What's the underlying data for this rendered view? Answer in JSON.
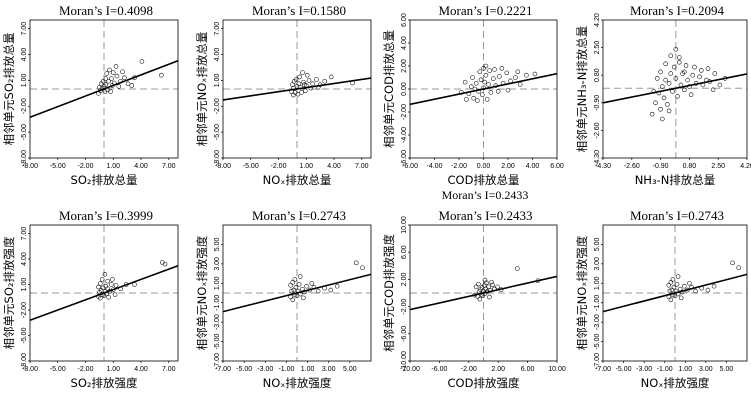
{
  "chart_data": [
    {
      "type": "scatter",
      "title": "Moran’s I=0.4098",
      "xlabel": "SO₂排放总量",
      "ylabel": "相邻单元SO₂排放总量",
      "xlim": [
        -8,
        8
      ],
      "ylim": [
        -8,
        8
      ],
      "xticks": [
        -8,
        -5,
        -2,
        1,
        4,
        7
      ],
      "yticks": [
        -8,
        -5,
        -2,
        1,
        4,
        7
      ],
      "tick_labels_x": [
        "-8.00",
        "-5.00",
        "-2.00",
        "1.00",
        "4.00",
        "7.00"
      ],
      "tick_labels_y": [
        "-8.00",
        "-5.00",
        "-2.00",
        "1.00",
        "4.00",
        "7.00"
      ],
      "fit": {
        "slope": 0.4098,
        "intercept": 0
      },
      "points": [
        [
          -0.6,
          -0.5
        ],
        [
          -0.4,
          -0.2
        ],
        [
          -0.2,
          0.1
        ],
        [
          0.0,
          0.3
        ],
        [
          0.2,
          0.5
        ],
        [
          0.5,
          0.9
        ],
        [
          0.8,
          1.2
        ],
        [
          1.1,
          0.7
        ],
        [
          1.4,
          1.5
        ],
        [
          1.8,
          0.9
        ],
        [
          2.2,
          1.3
        ],
        [
          2.6,
          0.6
        ],
        [
          0.3,
          1.8
        ],
        [
          0.6,
          2.2
        ],
        [
          1.0,
          1.9
        ],
        [
          3.3,
          1.3
        ],
        [
          4.1,
          3.2
        ],
        [
          6.2,
          1.6
        ],
        [
          -0.3,
          0.6
        ],
        [
          0.1,
          -0.3
        ],
        [
          -0.5,
          0.2
        ],
        [
          0.4,
          -0.1
        ],
        [
          0.9,
          0.4
        ],
        [
          1.6,
          0.3
        ],
        [
          0.7,
          -0.3
        ],
        [
          -0.1,
          0.9
        ],
        [
          2.0,
          2.0
        ],
        [
          1.3,
          2.6
        ],
        [
          0.2,
          1.2
        ],
        [
          3.0,
          0.4
        ]
      ]
    },
    {
      "type": "scatter",
      "title": "Moran’s I=0.1580",
      "xlabel": "NOₓ排放总量",
      "ylabel": "相邻单元NOₓ排放总量",
      "xlim": [
        -8,
        8
      ],
      "ylim": [
        -8,
        8
      ],
      "xticks": [
        -8,
        -5,
        -2,
        1,
        4,
        7
      ],
      "yticks": [
        -8,
        -5,
        -2,
        1,
        4,
        7
      ],
      "tick_labels_x": [
        "-8.00",
        "-5.00",
        "-2.00",
        "1.00",
        "4.00",
        "7.00"
      ],
      "tick_labels_y": [
        "-8.00",
        "-5.00",
        "-2.00",
        "1.00",
        "4.00",
        "7.00"
      ],
      "fit": {
        "slope": 0.158,
        "intercept": 0
      },
      "points": [
        [
          -0.6,
          -0.3
        ],
        [
          -0.4,
          0.1
        ],
        [
          -0.2,
          -0.4
        ],
        [
          0.0,
          0.3
        ],
        [
          0.2,
          0.6
        ],
        [
          0.4,
          0.2
        ],
        [
          0.7,
          0.8
        ],
        [
          1.0,
          0.4
        ],
        [
          1.3,
          1.0
        ],
        [
          1.7,
          0.6
        ],
        [
          2.1,
          1.1
        ],
        [
          2.5,
          0.5
        ],
        [
          0.3,
          1.4
        ],
        [
          0.6,
          1.9
        ],
        [
          -0.3,
          0.9
        ],
        [
          0.9,
          -0.2
        ],
        [
          3.0,
          0.9
        ],
        [
          3.7,
          1.4
        ],
        [
          6.0,
          0.7
        ],
        [
          -0.5,
          0.5
        ],
        [
          0.1,
          -0.6
        ],
        [
          1.5,
          0.1
        ],
        [
          0.5,
          -0.4
        ],
        [
          -0.1,
          1.1
        ],
        [
          2.3,
          0.2
        ],
        [
          1.1,
          1.6
        ],
        [
          0.8,
          0.5
        ],
        [
          -0.4,
          -0.7
        ]
      ]
    },
    {
      "type": "scatter",
      "title": "Moran’s I=0.2221",
      "xlabel": "COD排放总量",
      "ylabel": "相邻单元COD排放总量",
      "xlim": [
        -6,
        6
      ],
      "ylim": [
        -6,
        6
      ],
      "xticks": [
        -6,
        -4,
        -2,
        0,
        2,
        4,
        6
      ],
      "yticks": [
        -6,
        -4,
        -2,
        0,
        2,
        4,
        6
      ],
      "tick_labels_x": [
        "-6.00",
        "-4.00",
        "-2.00",
        "0.00",
        "2.00",
        "4.00",
        "6.00"
      ],
      "tick_labels_y": [
        "-6.00",
        "-4.00",
        "-2.00",
        "0.00",
        "2.00",
        "4.00",
        "6.00"
      ],
      "fit": {
        "slope": 0.2221,
        "intercept": 0
      },
      "points": [
        [
          -1.2,
          -0.4
        ],
        [
          -1.0,
          0.2
        ],
        [
          -0.8,
          -0.8
        ],
        [
          -0.6,
          0.5
        ],
        [
          -0.4,
          -0.2
        ],
        [
          -0.2,
          0.8
        ],
        [
          0.0,
          0.1
        ],
        [
          0.2,
          1.2
        ],
        [
          0.4,
          0.4
        ],
        [
          0.6,
          -0.3
        ],
        [
          0.8,
          0.9
        ],
        [
          1.0,
          0.3
        ],
        [
          1.3,
          1.1
        ],
        [
          1.6,
          0.5
        ],
        [
          1.9,
          1.4
        ],
        [
          2.2,
          0.7
        ],
        [
          2.6,
          1.0
        ],
        [
          3.0,
          0.4
        ],
        [
          3.5,
          1.2
        ],
        [
          0.0,
          1.8
        ],
        [
          0.2,
          2.0
        ],
        [
          -0.3,
          1.5
        ],
        [
          0.5,
          1.6
        ],
        [
          -1.5,
          0.6
        ],
        [
          -1.8,
          -0.3
        ],
        [
          -0.9,
          1.0
        ],
        [
          0.3,
          -0.9
        ],
        [
          1.2,
          -0.2
        ],
        [
          -0.5,
          -1.0
        ],
        [
          2.0,
          -0.1
        ],
        [
          0.9,
          1.7
        ],
        [
          -1.4,
          -0.9
        ],
        [
          0.1,
          0.6
        ],
        [
          -0.7,
          0.0
        ],
        [
          1.5,
          1.8
        ],
        [
          4.2,
          1.3
        ],
        [
          2.8,
          1.5
        ],
        [
          -0.1,
          -0.5
        ]
      ]
    },
    {
      "type": "scatter",
      "title": "Moran’s I=0.2094",
      "xlabel": "NH₃-N排放总量",
      "ylabel": "相邻单元NH₃-N排放总量",
      "xlim": [
        -4.3,
        4.2
      ],
      "ylim": [
        -4.3,
        4.2
      ],
      "xticks": [
        -4.3,
        -2.6,
        -0.9,
        0.8,
        2.5,
        4.2
      ],
      "yticks": [
        -4.3,
        -2.6,
        -0.9,
        0.8,
        2.5,
        4.2
      ],
      "tick_labels_x": [
        "-4.30",
        "-2.60",
        "-0.90",
        "0.80",
        "2.50",
        "4.20"
      ],
      "tick_labels_y": [
        "-4.30",
        "-2.60",
        "-0.90",
        "0.80",
        "2.50",
        "4.20"
      ],
      "fit": {
        "slope": 0.2094,
        "intercept": 0
      },
      "points": [
        [
          -1.2,
          -0.9
        ],
        [
          -1.0,
          -0.3
        ],
        [
          -0.9,
          -1.3
        ],
        [
          -0.8,
          0.1
        ],
        [
          -0.7,
          -0.6
        ],
        [
          -0.6,
          0.5
        ],
        [
          -0.5,
          -1.0
        ],
        [
          -0.4,
          0.3
        ],
        [
          -0.3,
          0.9
        ],
        [
          -0.2,
          -0.2
        ],
        [
          -0.1,
          1.3
        ],
        [
          0.0,
          0.6
        ],
        [
          0.1,
          -0.5
        ],
        [
          0.2,
          1.6
        ],
        [
          0.3,
          0.2
        ],
        [
          0.4,
          0.9
        ],
        [
          0.5,
          -0.1
        ],
        [
          0.6,
          1.4
        ],
        [
          0.7,
          0.5
        ],
        [
          0.8,
          0.1
        ],
        [
          1.0,
          0.8
        ],
        [
          1.2,
          0.3
        ],
        [
          1.4,
          0.7
        ],
        [
          1.6,
          0.2
        ],
        [
          1.8,
          0.5
        ],
        [
          2.0,
          0.4
        ],
        [
          2.3,
          0.9
        ],
        [
          2.6,
          0.2
        ],
        [
          2.9,
          0.6
        ],
        [
          -1.4,
          -1.6
        ],
        [
          -1.1,
          0.6
        ],
        [
          -0.9,
          1.0
        ],
        [
          -0.6,
          1.5
        ],
        [
          -0.3,
          2.0
        ],
        [
          0.0,
          2.4
        ],
        [
          0.2,
          1.9
        ],
        [
          -1.3,
          -0.2
        ],
        [
          -0.8,
          -1.9
        ],
        [
          0.5,
          1.0
        ],
        [
          1.1,
          1.3
        ],
        [
          1.5,
          1.1
        ],
        [
          -0.4,
          -1.4
        ],
        [
          0.9,
          -0.4
        ],
        [
          1.9,
          1.2
        ],
        [
          2.2,
          -0.1
        ]
      ]
    },
    {
      "type": "scatter",
      "title": "Moran’s I=0.3999",
      "xlabel": "SO₂排放强度",
      "ylabel": "相邻单元SO₂排放强度",
      "xlim": [
        -8,
        8
      ],
      "ylim": [
        -8,
        8
      ],
      "xticks": [
        -8,
        -5,
        -2,
        1,
        4,
        7
      ],
      "yticks": [
        -8,
        -5,
        -2,
        1,
        4,
        7
      ],
      "tick_labels_x": [
        "-8.00",
        "-5.00",
        "-2.00",
        "1.00",
        "4.00",
        "7.00"
      ],
      "tick_labels_y": [
        "-8.00",
        "-5.00",
        "-2.00",
        "1.00",
        "4.00",
        "7.00"
      ],
      "fit": {
        "slope": 0.3999,
        "intercept": 0
      },
      "points": [
        [
          -0.6,
          -0.4
        ],
        [
          -0.5,
          0.1
        ],
        [
          -0.4,
          -0.6
        ],
        [
          -0.3,
          0.3
        ],
        [
          -0.2,
          -0.2
        ],
        [
          -0.1,
          0.6
        ],
        [
          0.0,
          -0.3
        ],
        [
          0.1,
          0.2
        ],
        [
          0.2,
          0.8
        ],
        [
          0.3,
          -0.1
        ],
        [
          0.4,
          0.5
        ],
        [
          0.6,
          0.2
        ],
        [
          0.8,
          1.0
        ],
        [
          1.0,
          0.4
        ],
        [
          1.3,
          0.9
        ],
        [
          1.8,
          0.5
        ],
        [
          2.4,
          1.0
        ],
        [
          -0.2,
          1.6
        ],
        [
          0.1,
          2.2
        ],
        [
          0.4,
          1.4
        ],
        [
          6.3,
          3.6
        ],
        [
          6.6,
          3.4
        ],
        [
          3.3,
          1.0
        ],
        [
          -0.6,
          0.7
        ],
        [
          0.5,
          -0.5
        ],
        [
          1.2,
          -0.2
        ],
        [
          -0.4,
          1.1
        ],
        [
          0.9,
          1.6
        ]
      ]
    },
    {
      "type": "scatter",
      "title": "Moran’s I=0.2743",
      "xlabel": "NOₓ排放强度",
      "ylabel": "相邻单元NOₓ排放强度",
      "xlim": [
        -7,
        7
      ],
      "ylim": [
        -7,
        7
      ],
      "xticks": [
        -7,
        -5,
        -3,
        -1,
        1,
        3,
        5
      ],
      "yticks": [
        -7,
        -5,
        -3,
        -1,
        1,
        3,
        5
      ],
      "tick_labels_x": [
        "-7.00",
        "-5.00",
        "-3.00",
        "-1.00",
        "1.00",
        "3.00",
        "5.00"
      ],
      "tick_labels_y": [
        "-7.00",
        "-5.00",
        "-3.00",
        "-1.00",
        "1.00",
        "3.00",
        "5.00"
      ],
      "fit": {
        "slope": 0.2743,
        "intercept": 0
      },
      "points": [
        [
          -0.6,
          -0.4
        ],
        [
          -0.5,
          0.2
        ],
        [
          -0.4,
          -0.7
        ],
        [
          -0.3,
          0.3
        ],
        [
          -0.2,
          -0.2
        ],
        [
          -0.1,
          0.6
        ],
        [
          0.0,
          -0.3
        ],
        [
          0.1,
          0.2
        ],
        [
          0.2,
          0.9
        ],
        [
          0.3,
          -0.1
        ],
        [
          0.5,
          0.4
        ],
        [
          0.7,
          0.1
        ],
        [
          0.9,
          0.7
        ],
        [
          1.2,
          0.3
        ],
        [
          1.6,
          0.6
        ],
        [
          2.0,
          0.2
        ],
        [
          2.6,
          0.5
        ],
        [
          3.2,
          0.3
        ],
        [
          3.8,
          0.7
        ],
        [
          -0.2,
          1.4
        ],
        [
          0.3,
          1.7
        ],
        [
          5.6,
          3.1
        ],
        [
          6.2,
          2.6
        ],
        [
          0.6,
          -0.5
        ],
        [
          -0.6,
          0.8
        ],
        [
          1.4,
          1.0
        ],
        [
          -0.4,
          1.1
        ]
      ]
    },
    {
      "type": "scatter",
      "title": "Moran’s I=0.2433",
      "xlabel": "COD排放强度",
      "ylabel": "相邻单元COD排放强度",
      "xlim": [
        -10,
        10
      ],
      "ylim": [
        -10,
        10
      ],
      "xticks": [
        -10,
        -6,
        -2,
        2,
        6,
        10
      ],
      "yticks": [
        -10,
        -6,
        -2,
        2,
        6,
        10
      ],
      "tick_labels_x": [
        "-10.00",
        "-6.00",
        "-2.00",
        "2.00",
        "6.00",
        "10.00"
      ],
      "tick_labels_y": [
        "-10.00",
        "-6.00",
        "-2.00",
        "2.00",
        "6.00",
        "10.00"
      ],
      "fit": {
        "slope": 0.2433,
        "intercept": 0
      },
      "points": [
        [
          -0.8,
          -0.5
        ],
        [
          -0.6,
          0.2
        ],
        [
          -0.5,
          -0.9
        ],
        [
          -0.4,
          0.5
        ],
        [
          -0.3,
          -0.2
        ],
        [
          -0.2,
          0.8
        ],
        [
          -0.1,
          -0.4
        ],
        [
          0.0,
          0.3
        ],
        [
          0.1,
          1.1
        ],
        [
          0.2,
          -0.1
        ],
        [
          0.3,
          0.6
        ],
        [
          0.5,
          0.2
        ],
        [
          0.7,
          0.9
        ],
        [
          0.9,
          0.4
        ],
        [
          1.2,
          1.2
        ],
        [
          1.5,
          0.6
        ],
        [
          1.9,
          0.9
        ],
        [
          2.4,
          0.5
        ],
        [
          -1.0,
          0.9
        ],
        [
          -0.7,
          1.3
        ],
        [
          0.4,
          1.5
        ],
        [
          4.6,
          3.6
        ],
        [
          7.4,
          1.8
        ],
        [
          0.8,
          -0.6
        ],
        [
          -1.2,
          -0.3
        ],
        [
          1.1,
          1.6
        ],
        [
          0.2,
          1.9
        ]
      ]
    },
    {
      "type": "scatter",
      "title": "Moran’s I=0.2743",
      "xlabel": "NOₓ排放强度",
      "ylabel": "相邻单元NOₓ排放强度",
      "xlim": [
        -7,
        7
      ],
      "ylim": [
        -7,
        7
      ],
      "xticks": [
        -7,
        -5,
        -3,
        -1,
        1,
        3,
        5
      ],
      "yticks": [
        -7,
        -5,
        -3,
        -1,
        1,
        3,
        5
      ],
      "tick_labels_x": [
        "-7.00",
        "-5.00",
        "-3.00",
        "-1.00",
        "1.00",
        "3.00",
        "5.00"
      ],
      "tick_labels_y": [
        "-7.00",
        "-5.00",
        "-3.00",
        "-1.00",
        "1.00",
        "3.00",
        "5.00"
      ],
      "fit": {
        "slope": 0.2743,
        "intercept": 0
      },
      "points": [
        [
          -0.6,
          -0.4
        ],
        [
          -0.5,
          0.2
        ],
        [
          -0.4,
          -0.7
        ],
        [
          -0.3,
          0.3
        ],
        [
          -0.2,
          -0.2
        ],
        [
          -0.1,
          0.6
        ],
        [
          0.0,
          -0.3
        ],
        [
          0.1,
          0.2
        ],
        [
          0.2,
          0.9
        ],
        [
          0.3,
          -0.1
        ],
        [
          0.5,
          0.4
        ],
        [
          0.7,
          0.1
        ],
        [
          0.9,
          0.7
        ],
        [
          1.2,
          0.3
        ],
        [
          1.6,
          0.6
        ],
        [
          2.0,
          0.2
        ],
        [
          2.6,
          0.5
        ],
        [
          3.2,
          0.3
        ],
        [
          3.8,
          0.7
        ],
        [
          -0.2,
          1.4
        ],
        [
          0.3,
          1.7
        ],
        [
          5.6,
          3.1
        ],
        [
          6.2,
          2.6
        ],
        [
          0.6,
          -0.5
        ],
        [
          -0.6,
          0.8
        ],
        [
          1.4,
          1.0
        ],
        [
          -0.4,
          1.1
        ]
      ]
    }
  ],
  "extra_caption": "Moran’s I=0.2433"
}
